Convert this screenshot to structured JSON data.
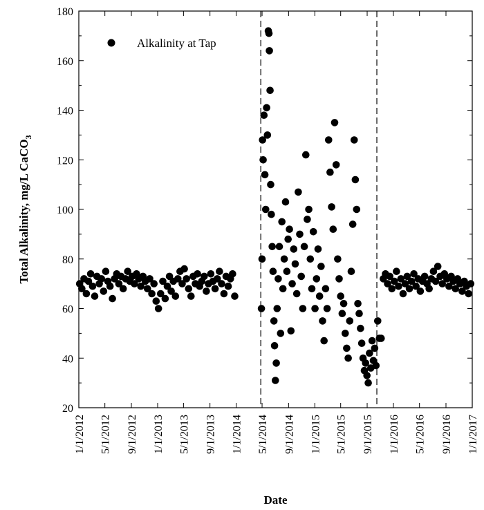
{
  "chart_data": {
    "type": "scatter",
    "xlabel": "Date",
    "ylabel": "Total Alkalinity, mg/L CaCO",
    "ylabel_subscript": "3",
    "ylim": [
      20,
      180
    ],
    "y_ticks": [
      "20",
      "40",
      "60",
      "80",
      "100",
      "120",
      "140",
      "160",
      "180"
    ],
    "x_ticks": [
      "1/1/2012",
      "5/1/2012",
      "9/1/2012",
      "1/1/2013",
      "5/1/2013",
      "9/1/2013",
      "1/1/2014",
      "5/1/2014",
      "9/1/2014",
      "1/1/2015",
      "5/1/2015",
      "9/1/2015",
      "1/1/2016",
      "5/1/2016",
      "9/1/2016",
      "1/1/2017"
    ],
    "xlim": [
      "2012-01-01",
      "2017-01-01"
    ],
    "legend": "top-left",
    "grid": false,
    "vertical_reference_lines": [
      "2014-04-25",
      "2015-10-16"
    ],
    "marker_color": "#000000",
    "series": [
      {
        "name": "Alkalinity at Tap",
        "points": [
          [
            "2012-01-05",
            70
          ],
          [
            "2012-01-15",
            68
          ],
          [
            "2012-01-25",
            72
          ],
          [
            "2012-02-05",
            66
          ],
          [
            "2012-02-15",
            71
          ],
          [
            "2012-02-25",
            74
          ],
          [
            "2012-03-05",
            69
          ],
          [
            "2012-03-15",
            65
          ],
          [
            "2012-03-25",
            73
          ],
          [
            "2012-04-05",
            70
          ],
          [
            "2012-04-15",
            72
          ],
          [
            "2012-04-25",
            67
          ],
          [
            "2012-05-05",
            75
          ],
          [
            "2012-05-15",
            71
          ],
          [
            "2012-05-25",
            69
          ],
          [
            "2012-06-05",
            64
          ],
          [
            "2012-06-15",
            72
          ],
          [
            "2012-06-25",
            74
          ],
          [
            "2012-07-05",
            70
          ],
          [
            "2012-07-15",
            73
          ],
          [
            "2012-07-25",
            68
          ],
          [
            "2012-08-05",
            72
          ],
          [
            "2012-08-15",
            75
          ],
          [
            "2012-08-25",
            71
          ],
          [
            "2012-09-05",
            73
          ],
          [
            "2012-09-15",
            70
          ],
          [
            "2012-09-25",
            74
          ],
          [
            "2012-10-05",
            72
          ],
          [
            "2012-10-15",
            69
          ],
          [
            "2012-10-25",
            73
          ],
          [
            "2012-11-05",
            71
          ],
          [
            "2012-11-15",
            68
          ],
          [
            "2012-11-25",
            72
          ],
          [
            "2012-12-05",
            66
          ],
          [
            "2012-12-15",
            70
          ],
          [
            "2012-12-25",
            63
          ],
          [
            "2013-01-05",
            60
          ],
          [
            "2013-01-15",
            66
          ],
          [
            "2013-01-25",
            71
          ],
          [
            "2013-02-05",
            64
          ],
          [
            "2013-02-15",
            69
          ],
          [
            "2013-02-25",
            73
          ],
          [
            "2013-03-05",
            67
          ],
          [
            "2013-03-15",
            71
          ],
          [
            "2013-03-25",
            65
          ],
          [
            "2013-04-05",
            72
          ],
          [
            "2013-04-15",
            75
          ],
          [
            "2013-04-25",
            70
          ],
          [
            "2013-05-05",
            76
          ],
          [
            "2013-05-15",
            72
          ],
          [
            "2013-05-25",
            68
          ],
          [
            "2013-06-05",
            65
          ],
          [
            "2013-06-15",
            73
          ],
          [
            "2013-06-25",
            70
          ],
          [
            "2013-07-05",
            74
          ],
          [
            "2013-07-15",
            69
          ],
          [
            "2013-07-25",
            71
          ],
          [
            "2013-08-05",
            73
          ],
          [
            "2013-08-15",
            67
          ],
          [
            "2013-08-25",
            70
          ],
          [
            "2013-09-05",
            74
          ],
          [
            "2013-09-15",
            71
          ],
          [
            "2013-09-25",
            68
          ],
          [
            "2013-10-05",
            72
          ],
          [
            "2013-10-15",
            75
          ],
          [
            "2013-10-25",
            70
          ],
          [
            "2013-11-05",
            66
          ],
          [
            "2013-11-15",
            73
          ],
          [
            "2013-11-25",
            69
          ],
          [
            "2013-12-05",
            72
          ],
          [
            "2013-12-15",
            74
          ],
          [
            "2013-12-25",
            65
          ],
          [
            "2014-04-28",
            60
          ],
          [
            "2014-05-01",
            80
          ],
          [
            "2014-05-03",
            128
          ],
          [
            "2014-05-06",
            120
          ],
          [
            "2014-05-10",
            138
          ],
          [
            "2014-05-14",
            114
          ],
          [
            "2014-05-18",
            100
          ],
          [
            "2014-05-22",
            141
          ],
          [
            "2014-05-26",
            130
          ],
          [
            "2014-05-30",
            172
          ],
          [
            "2014-06-02",
            171
          ],
          [
            "2014-06-04",
            164
          ],
          [
            "2014-06-07",
            148
          ],
          [
            "2014-06-10",
            110
          ],
          [
            "2014-06-13",
            98
          ],
          [
            "2014-06-17",
            85
          ],
          [
            "2014-06-21",
            75
          ],
          [
            "2014-06-25",
            55
          ],
          [
            "2014-06-28",
            45
          ],
          [
            "2014-07-02",
            31
          ],
          [
            "2014-07-06",
            38
          ],
          [
            "2014-07-10",
            60
          ],
          [
            "2014-07-15",
            72
          ],
          [
            "2014-07-20",
            85
          ],
          [
            "2014-07-26",
            50
          ],
          [
            "2014-08-01",
            95
          ],
          [
            "2014-08-06",
            68
          ],
          [
            "2014-08-12",
            80
          ],
          [
            "2014-08-18",
            103
          ],
          [
            "2014-08-24",
            75
          ],
          [
            "2014-08-30",
            88
          ],
          [
            "2014-09-05",
            92
          ],
          [
            "2014-09-12",
            51
          ],
          [
            "2014-09-18",
            70
          ],
          [
            "2014-09-25",
            84
          ],
          [
            "2014-10-02",
            78
          ],
          [
            "2014-10-09",
            66
          ],
          [
            "2014-10-16",
            107
          ],
          [
            "2014-10-23",
            90
          ],
          [
            "2014-10-30",
            73
          ],
          [
            "2014-11-06",
            60
          ],
          [
            "2014-11-13",
            85
          ],
          [
            "2014-11-20",
            122
          ],
          [
            "2014-11-27",
            96
          ],
          [
            "2014-12-04",
            100
          ],
          [
            "2014-12-11",
            80
          ],
          [
            "2014-12-18",
            68
          ],
          [
            "2014-12-25",
            91
          ],
          [
            "2015-01-02",
            60
          ],
          [
            "2015-01-09",
            72
          ],
          [
            "2015-01-16",
            84
          ],
          [
            "2015-01-23",
            65
          ],
          [
            "2015-01-30",
            77
          ],
          [
            "2015-02-06",
            55
          ],
          [
            "2015-02-13",
            47
          ],
          [
            "2015-02-20",
            68
          ],
          [
            "2015-02-27",
            60
          ],
          [
            "2015-03-06",
            128
          ],
          [
            "2015-03-13",
            115
          ],
          [
            "2015-03-20",
            101
          ],
          [
            "2015-03-27",
            92
          ],
          [
            "2015-04-03",
            135
          ],
          [
            "2015-04-10",
            118
          ],
          [
            "2015-04-17",
            80
          ],
          [
            "2015-04-24",
            72
          ],
          [
            "2015-05-01",
            65
          ],
          [
            "2015-05-08",
            58
          ],
          [
            "2015-05-15",
            62
          ],
          [
            "2015-05-22",
            50
          ],
          [
            "2015-05-29",
            44
          ],
          [
            "2015-06-05",
            40
          ],
          [
            "2015-06-12",
            55
          ],
          [
            "2015-06-19",
            75
          ],
          [
            "2015-06-26",
            94
          ],
          [
            "2015-07-03",
            128
          ],
          [
            "2015-07-08",
            112
          ],
          [
            "2015-07-14",
            100
          ],
          [
            "2015-07-20",
            62
          ],
          [
            "2015-07-26",
            58
          ],
          [
            "2015-08-01",
            52
          ],
          [
            "2015-08-07",
            46
          ],
          [
            "2015-08-13",
            40
          ],
          [
            "2015-08-19",
            35
          ],
          [
            "2015-08-25",
            38
          ],
          [
            "2015-08-31",
            33
          ],
          [
            "2015-09-06",
            30
          ],
          [
            "2015-09-12",
            42
          ],
          [
            "2015-09-18",
            36
          ],
          [
            "2015-09-24",
            47
          ],
          [
            "2015-09-30",
            39
          ],
          [
            "2015-10-06",
            44
          ],
          [
            "2015-10-12",
            37
          ],
          [
            "2015-10-20",
            55
          ],
          [
            "2015-10-28",
            48
          ],
          [
            "2015-11-05",
            48
          ],
          [
            "2015-11-15",
            72
          ],
          [
            "2015-11-25",
            74
          ],
          [
            "2015-12-05",
            70
          ],
          [
            "2015-12-15",
            73
          ],
          [
            "2015-12-25",
            68
          ],
          [
            "2016-01-05",
            71
          ],
          [
            "2016-01-15",
            75
          ],
          [
            "2016-01-25",
            69
          ],
          [
            "2016-02-05",
            72
          ],
          [
            "2016-02-15",
            66
          ],
          [
            "2016-02-25",
            70
          ],
          [
            "2016-03-05",
            73
          ],
          [
            "2016-03-15",
            68
          ],
          [
            "2016-03-25",
            71
          ],
          [
            "2016-04-05",
            74
          ],
          [
            "2016-04-15",
            69
          ],
          [
            "2016-04-25",
            72
          ],
          [
            "2016-05-05",
            67
          ],
          [
            "2016-05-15",
            71
          ],
          [
            "2016-05-25",
            73
          ],
          [
            "2016-06-05",
            70
          ],
          [
            "2016-06-15",
            68
          ],
          [
            "2016-06-25",
            72
          ],
          [
            "2016-07-05",
            75
          ],
          [
            "2016-07-15",
            71
          ],
          [
            "2016-07-25",
            77
          ],
          [
            "2016-08-05",
            73
          ],
          [
            "2016-08-15",
            70
          ],
          [
            "2016-08-25",
            74
          ],
          [
            "2016-09-05",
            72
          ],
          [
            "2016-09-15",
            69
          ],
          [
            "2016-09-25",
            73
          ],
          [
            "2016-10-05",
            71
          ],
          [
            "2016-10-15",
            68
          ],
          [
            "2016-10-25",
            72
          ],
          [
            "2016-11-05",
            70
          ],
          [
            "2016-11-15",
            67
          ],
          [
            "2016-11-25",
            71
          ],
          [
            "2016-12-05",
            69
          ],
          [
            "2016-12-15",
            66
          ],
          [
            "2016-12-25",
            70
          ]
        ]
      }
    ]
  }
}
